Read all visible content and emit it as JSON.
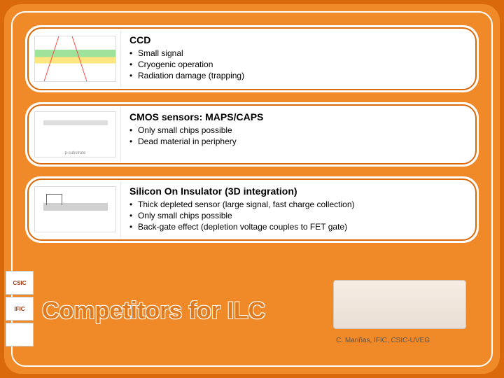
{
  "accent_color": "#d9690a",
  "title": "Competitors for ILC",
  "attribution": "C. Mariñas, IFIC, CSIC-UVEG",
  "cards": [
    {
      "heading": "CCD",
      "bullets": [
        "Small signal",
        "Cryogenic operation",
        "Radiation damage (trapping)"
      ]
    },
    {
      "heading": "CMOS sensors: MAPS/CAPS",
      "bullets": [
        "Only small chips possible",
        "Dead material in periphery"
      ]
    },
    {
      "heading": "Silicon On Insulator (3D integration)",
      "bullets": [
        "Thick depleted sensor (large signal, fast charge collection)",
        "Only small chips possible",
        "Back-gate effect (depletion voltage couples to FET gate)"
      ]
    }
  ],
  "logos": [
    "CSIC",
    "IFIC",
    ""
  ]
}
